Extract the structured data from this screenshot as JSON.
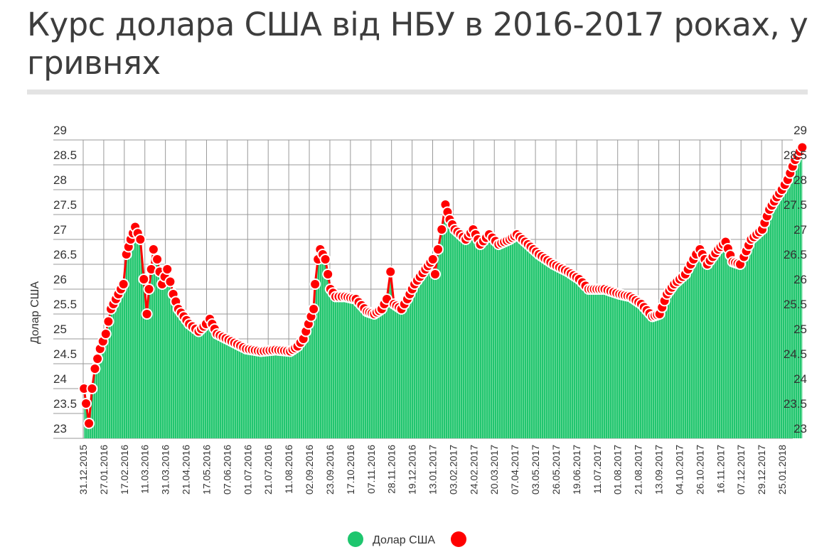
{
  "chart_data": {
    "type": "area",
    "title": "Курс долара США від НБУ в 2016-2017 роках, у гривнях",
    "ylabel": "Долар США",
    "xlabel": "",
    "ylim": [
      23,
      29
    ],
    "yticks": [
      "23",
      "23.5",
      "24",
      "24.5",
      "25",
      "25.5",
      "26",
      "26.5",
      "27",
      "27.5",
      "28",
      "28.5",
      "29"
    ],
    "categories": [
      "31.12.2015",
      "27.01.2016",
      "17.02.2016",
      "11.03.2016",
      "31.03.2016",
      "21.04.2016",
      "17.05.2016",
      "07.06.2016",
      "01.07.2016",
      "21.07.2016",
      "11.08.2016",
      "02.09.2016",
      "23.09.2016",
      "17.10.2016",
      "07.11.2016",
      "28.11.2016",
      "19.12.2016",
      "13.01.2017",
      "03.02.2017",
      "24.02.2017",
      "20.03.2017",
      "07.04.2017",
      "03.05.2017",
      "26.05.2017",
      "19.06.2017",
      "11.07.2017",
      "01.08.2017",
      "21.08.2017",
      "13.09.2017",
      "04.10.2017",
      "26.10.2017",
      "16.11.2017",
      "07.12.2017",
      "29.12.2017",
      "25.01.2018"
    ],
    "grid": true,
    "legend_position": "bottom",
    "series": [
      {
        "name": "Долар США",
        "type": "area",
        "color": "#1ec66e"
      },
      {
        "name": "",
        "type": "line-markers",
        "color": "#ff0000"
      }
    ],
    "points_note_x_is_category_index": true,
    "points": [
      [
        0.04,
        24.0
      ],
      [
        0.14,
        23.7
      ],
      [
        0.28,
        23.3
      ],
      [
        0.43,
        24.0
      ],
      [
        0.57,
        24.4
      ],
      [
        0.82,
        24.8
      ],
      [
        1.1,
        25.1
      ],
      [
        1.35,
        25.6
      ],
      [
        1.71,
        25.9
      ],
      [
        1.96,
        26.1
      ],
      [
        2.1,
        26.7
      ],
      [
        2.31,
        27.0
      ],
      [
        2.53,
        27.25
      ],
      [
        2.78,
        27.0
      ],
      [
        2.95,
        26.2
      ],
      [
        3.1,
        25.5
      ],
      [
        3.2,
        26.0
      ],
      [
        3.42,
        26.8
      ],
      [
        3.6,
        26.6
      ],
      [
        3.84,
        26.1
      ],
      [
        4.09,
        26.4
      ],
      [
        4.38,
        25.9
      ],
      [
        4.63,
        25.6
      ],
      [
        5.16,
        25.3
      ],
      [
        5.62,
        25.15
      ],
      [
        5.98,
        25.3
      ],
      [
        6.16,
        25.4
      ],
      [
        6.51,
        25.1
      ],
      [
        7.22,
        24.95
      ],
      [
        7.93,
        24.8
      ],
      [
        8.65,
        24.75
      ],
      [
        9.36,
        24.78
      ],
      [
        10.07,
        24.75
      ],
      [
        10.43,
        24.85
      ],
      [
        10.71,
        25.0
      ],
      [
        10.96,
        25.3
      ],
      [
        11.21,
        25.6
      ],
      [
        11.28,
        26.1
      ],
      [
        11.42,
        26.6
      ],
      [
        11.53,
        26.8
      ],
      [
        11.78,
        26.6
      ],
      [
        12.03,
        26.0
      ],
      [
        12.28,
        25.85
      ],
      [
        12.74,
        25.85
      ],
      [
        13.27,
        25.8
      ],
      [
        13.81,
        25.55
      ],
      [
        14.16,
        25.5
      ],
      [
        14.52,
        25.6
      ],
      [
        14.77,
        25.8
      ],
      [
        14.95,
        26.35
      ],
      [
        15.12,
        25.7
      ],
      [
        15.48,
        25.6
      ],
      [
        15.77,
        25.8
      ],
      [
        16.12,
        26.1
      ],
      [
        16.65,
        26.4
      ],
      [
        17.01,
        26.6
      ],
      [
        17.12,
        26.3
      ],
      [
        17.26,
        26.8
      ],
      [
        17.44,
        27.2
      ],
      [
        17.62,
        27.7
      ],
      [
        17.83,
        27.4
      ],
      [
        18.08,
        27.2
      ],
      [
        18.61,
        27.0
      ],
      [
        18.97,
        27.2
      ],
      [
        19.32,
        26.9
      ],
      [
        19.75,
        27.1
      ],
      [
        20.21,
        26.9
      ],
      [
        20.75,
        27.0
      ],
      [
        21.1,
        27.1
      ],
      [
        21.64,
        26.9
      ],
      [
        22.17,
        26.7
      ],
      [
        22.88,
        26.5
      ],
      [
        23.59,
        26.35
      ],
      [
        24.13,
        26.2
      ],
      [
        24.59,
        26.0
      ],
      [
        25.37,
        26.0
      ],
      [
        26.09,
        25.9
      ],
      [
        26.62,
        25.85
      ],
      [
        27.15,
        25.7
      ],
      [
        27.69,
        25.45
      ],
      [
        28.04,
        25.5
      ],
      [
        28.4,
        25.9
      ],
      [
        28.75,
        26.1
      ],
      [
        29.29,
        26.3
      ],
      [
        29.82,
        26.7
      ],
      [
        30.0,
        26.8
      ],
      [
        30.36,
        26.5
      ],
      [
        30.89,
        26.8
      ],
      [
        31.25,
        26.95
      ],
      [
        31.6,
        26.55
      ],
      [
        31.96,
        26.5
      ],
      [
        32.14,
        26.65
      ],
      [
        32.49,
        27.0
      ],
      [
        33.03,
        27.2
      ],
      [
        33.38,
        27.6
      ],
      [
        33.74,
        27.85
      ],
      [
        33.99,
        28.0
      ],
      [
        34.27,
        28.2
      ],
      [
        34.63,
        28.6
      ],
      [
        34.98,
        28.85
      ]
    ]
  },
  "legend": {
    "items": [
      {
        "label": "Долар США",
        "color": "#1ec66e"
      },
      {
        "label": "",
        "color": "#ff0000"
      }
    ]
  }
}
